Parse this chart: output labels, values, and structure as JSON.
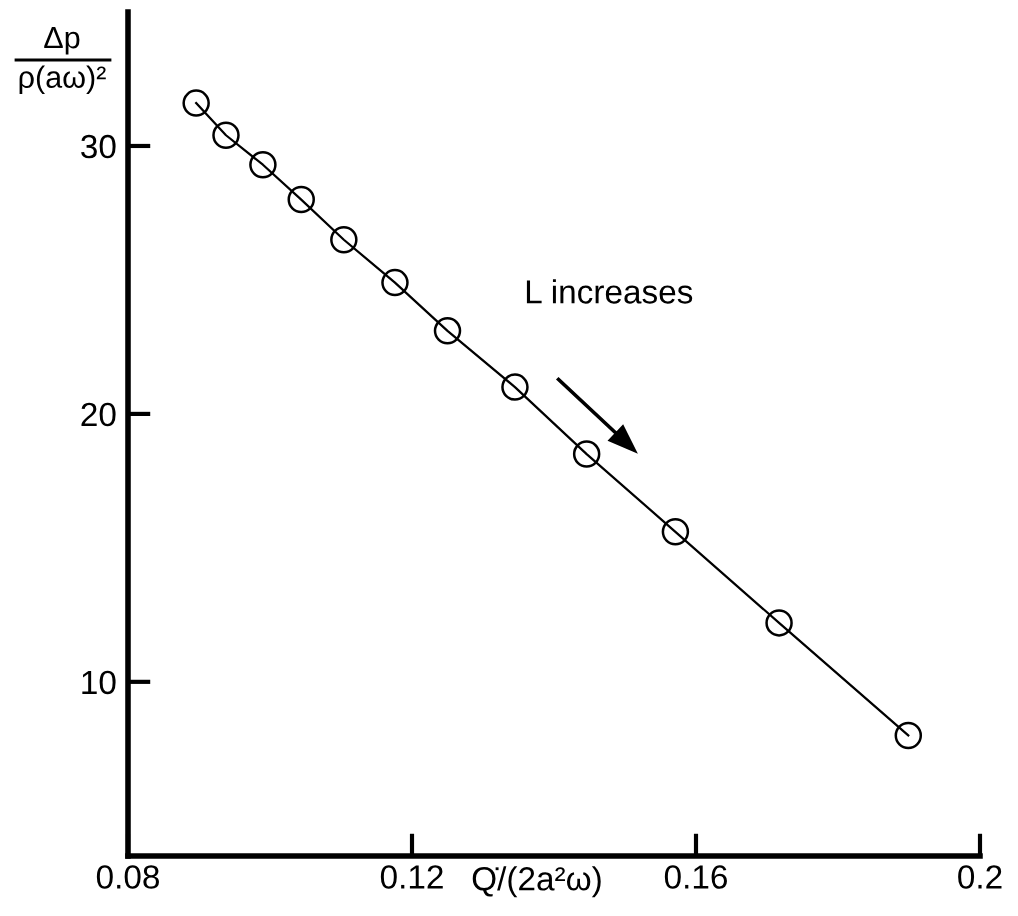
{
  "chart_data": {
    "type": "line",
    "xlabel": "Q̇/(2a²ω)",
    "ylabel": "Δp\nρ(aω)²",
    "x": [
      0.0896,
      0.0938,
      0.099,
      0.1044,
      0.1104,
      0.1176,
      0.125,
      0.1345,
      0.1446,
      0.1571,
      0.1717,
      0.1899
    ],
    "series": [
      {
        "color": "#000000",
        "values": [
          31.6,
          30.4,
          29.3,
          28.0,
          26.5,
          24.9,
          23.1,
          21.0,
          18.5,
          15.6,
          12.2,
          8.0
        ]
      }
    ],
    "marker": "circle",
    "line_style": "solid",
    "xlim": [
      0.08,
      0.2
    ],
    "ylim": [
      3.5,
      35
    ],
    "xticks": [
      0.08,
      0.12,
      0.16,
      0.2
    ],
    "yticks": [
      10,
      20,
      30
    ],
    "grid": false,
    "legend": false,
    "annotations": [
      "L increases"
    ]
  }
}
